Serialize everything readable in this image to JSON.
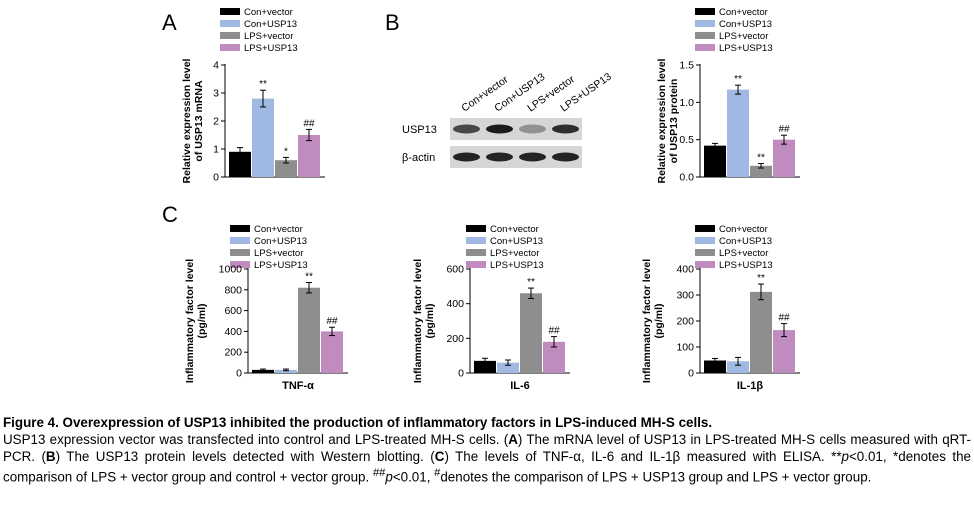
{
  "colors": {
    "Con+vector": "#000000",
    "Con+USP13": "#9fb9e2",
    "LPS+vector": "#8e8e8e",
    "LPS+USP13": "#c08cc0"
  },
  "panel_labels": {
    "a": "A",
    "b": "B",
    "c": "C"
  },
  "blot": {
    "lanes": [
      "Con+vector",
      "Con+USP13",
      "LPS+vector",
      "LPS+USP13"
    ],
    "rows": [
      "USP13",
      "β-actin"
    ],
    "usp13_intensity": [
      0.72,
      0.95,
      0.35,
      0.85
    ],
    "actin_intensity": [
      0.9,
      0.9,
      0.9,
      0.9
    ]
  },
  "chart_data": [
    {
      "id": "A",
      "type": "bar",
      "categories": [
        "Con+vector",
        "Con+USP13",
        "LPS+vector",
        "LPS+USP13"
      ],
      "values": [
        0.9,
        2.8,
        0.6,
        1.5
      ],
      "errors": [
        0.15,
        0.3,
        0.1,
        0.2
      ],
      "annotations": [
        "",
        "**",
        "*",
        "##"
      ],
      "ylabel": "Relative expression level of USP13 mRNA",
      "ylabel_lines": [
        "Relative expression level",
        "of USP13 mRNA"
      ],
      "xlabel": "",
      "ylim": [
        0,
        4
      ],
      "yticks": [
        0,
        1,
        2,
        3,
        4
      ],
      "tick_labels": [
        "0",
        "1",
        "2",
        "3",
        "4"
      ],
      "legend": [
        "Con+vector",
        "Con+USP13",
        "LPS+vector",
        "LPS+USP13"
      ]
    },
    {
      "id": "B",
      "type": "bar",
      "categories": [
        "Con+vector",
        "Con+USP13",
        "LPS+vector",
        "LPS+USP13"
      ],
      "values": [
        0.42,
        1.17,
        0.15,
        0.5
      ],
      "errors": [
        0.03,
        0.06,
        0.03,
        0.06
      ],
      "annotations": [
        "",
        "**",
        "**",
        "##"
      ],
      "ylabel": "Relative expression level of USP13 protein",
      "ylabel_lines": [
        "Relative expression level",
        "of USP13 protein"
      ],
      "xlabel": "",
      "ylim": [
        0,
        1.5
      ],
      "yticks": [
        0,
        0.5,
        1,
        1.5
      ],
      "tick_labels": [
        "0.0",
        "0.5",
        "1.0",
        "1.5"
      ],
      "legend": [
        "Con+vector",
        "Con+USP13",
        "LPS+vector",
        "LPS+USP13"
      ]
    },
    {
      "id": "TNF",
      "type": "bar",
      "categories": [
        "Con+vector",
        "Con+USP13",
        "LPS+vector",
        "LPS+USP13"
      ],
      "values": [
        30,
        30,
        820,
        400
      ],
      "errors": [
        8,
        8,
        50,
        40
      ],
      "annotations": [
        "",
        "",
        "**",
        "##"
      ],
      "ylabel": "Inflammatory factor level (pg/ml)",
      "ylabel_lines": [
        "Inflammatory factor level",
        "(pg/ml)"
      ],
      "xlabel": "TNF-α",
      "ylim": [
        0,
        1000
      ],
      "yticks": [
        0,
        200,
        400,
        600,
        800,
        1000
      ],
      "tick_labels": [
        "0",
        "200",
        "400",
        "600",
        "800",
        "1000"
      ],
      "legend": [
        "Con+vector",
        "Con+USP13",
        "LPS+vector",
        "LPS+USP13"
      ]
    },
    {
      "id": "IL6",
      "type": "bar",
      "categories": [
        "Con+vector",
        "Con+USP13",
        "LPS+vector",
        "LPS+USP13"
      ],
      "values": [
        70,
        60,
        460,
        180
      ],
      "errors": [
        15,
        15,
        30,
        30
      ],
      "annotations": [
        "",
        "",
        "**",
        "##"
      ],
      "ylabel": "Inflammatory factor level (pg/ml)",
      "ylabel_lines": [
        "Inflammatory factor level",
        "(pg/ml)"
      ],
      "xlabel": "IL-6",
      "ylim": [
        0,
        600
      ],
      "yticks": [
        0,
        200,
        400,
        600
      ],
      "tick_labels": [
        "0",
        "200",
        "400",
        "600"
      ],
      "legend": [
        "Con+vector",
        "Con+USP13",
        "LPS+vector",
        "LPS+USP13"
      ]
    },
    {
      "id": "IL1B",
      "type": "bar",
      "categories": [
        "Con+vector",
        "Con+USP13",
        "LPS+vector",
        "LPS+USP13"
      ],
      "values": [
        48,
        45,
        312,
        165
      ],
      "errors": [
        8,
        15,
        30,
        25
      ],
      "annotations": [
        "",
        "",
        "**",
        "##"
      ],
      "ylabel": "Inflammatory factor level (pg/ml)",
      "ylabel_lines": [
        "Inflammatory factor level",
        "(pg/ml)"
      ],
      "xlabel": "IL-1β",
      "ylim": [
        0,
        400
      ],
      "yticks": [
        0,
        100,
        200,
        300,
        400
      ],
      "tick_labels": [
        "0",
        "100",
        "200",
        "300",
        "400"
      ],
      "legend": [
        "Con+vector",
        "Con+USP13",
        "LPS+vector",
        "LPS+USP13"
      ]
    }
  ],
  "caption": {
    "title": "Figure 4. Overexpression of USP13 inhibited the production of inflammatory factors in LPS-induced MH-S cells.",
    "s1": "USP13 expression vector was transfected into control and LPS-treated MH-S cells. (",
    "kA": "A",
    "s2": ") The mRNA level of USP13 in LPS-treated MH-S cells measured with qRT-PCR. (",
    "kB": "B",
    "s3": ") The USP13 protein levels detected with Western blotting. (",
    "kC": "C",
    "s4": ") The levels of TNF-α, IL-6 and IL-1β measured with ELISA. **",
    "p1": "p",
    "s5": "<0.01, *denotes the comparison of LPS + vector group and control + vector group. ",
    "sup": "##",
    "p2": "p",
    "s6": "<0.01, ",
    "sup2": "#",
    "s7": "denotes the comparison of LPS + USP13 group and LPS + vector group."
  }
}
